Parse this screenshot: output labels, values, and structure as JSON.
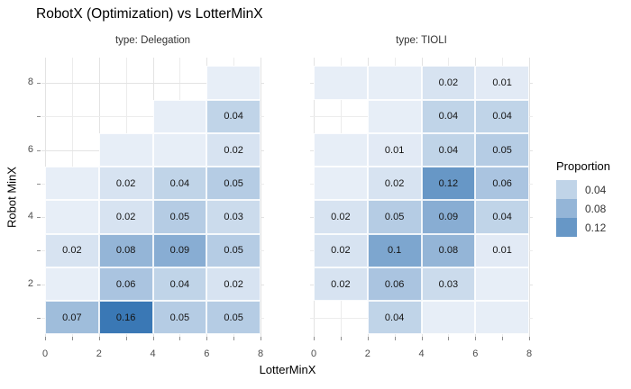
{
  "title": "RobotX (Optimization) vs LotterMinX",
  "x_axis": {
    "label": "LotterMinX",
    "tick_positions": [
      0,
      1,
      2,
      3,
      4,
      5,
      6,
      7,
      8
    ],
    "labeled_ticks": [
      0,
      2,
      4,
      6,
      8
    ],
    "tick_labels": [
      "0",
      "2",
      "4",
      "6",
      "8"
    ]
  },
  "y_axis": {
    "label": "Robot MinX",
    "tick_positions": [
      1,
      2,
      3,
      4,
      5,
      6,
      7,
      8
    ],
    "labeled_ticks": [
      2,
      4,
      6,
      8
    ],
    "tick_labels": [
      "2",
      "4",
      "6",
      "8"
    ]
  },
  "legend": {
    "title": "Proportion",
    "entries": [
      {
        "label": "0.04",
        "value": 0.04
      },
      {
        "label": "0.08",
        "value": 0.08
      },
      {
        "label": "0.12",
        "value": 0.12
      }
    ]
  },
  "scale": {
    "low_color": "#edf2f9",
    "high_color": "#3a78b5",
    "domain": [
      0,
      0.16
    ],
    "unlabeled_cell_value": 0.005
  },
  "chart_data": {
    "type": "heatmap",
    "title": "RobotX (Optimization) vs LotterMinX",
    "xlabel": "LotterMinX",
    "ylabel": "Robot MinX",
    "legend_title": "Proportion",
    "legend_ticks": [
      0.04,
      0.08,
      0.12
    ],
    "x_bins": [
      [
        0,
        2
      ],
      [
        2,
        4
      ],
      [
        4,
        6
      ],
      [
        6,
        8
      ]
    ],
    "y_values": [
      1,
      2,
      3,
      4,
      5,
      6,
      7,
      8
    ],
    "xlim": [
      0,
      8
    ],
    "ylim": [
      0.5,
      8.5
    ],
    "grid": true,
    "facets": [
      {
        "name": "type: Delegation",
        "cells": [
          {
            "x": [
              0,
              2
            ],
            "y": 1,
            "v": 0.07,
            "label": "0.07"
          },
          {
            "x": [
              2,
              4
            ],
            "y": 1,
            "v": 0.16,
            "label": "0.16"
          },
          {
            "x": [
              4,
              6
            ],
            "y": 1,
            "v": 0.05,
            "label": "0.05"
          },
          {
            "x": [
              6,
              8
            ],
            "y": 1,
            "v": 0.05,
            "label": "0.05"
          },
          {
            "x": [
              0,
              2
            ],
            "y": 2,
            "v": null,
            "label": ""
          },
          {
            "x": [
              2,
              4
            ],
            "y": 2,
            "v": 0.06,
            "label": "0.06"
          },
          {
            "x": [
              4,
              6
            ],
            "y": 2,
            "v": 0.04,
            "label": "0.04"
          },
          {
            "x": [
              6,
              8
            ],
            "y": 2,
            "v": 0.02,
            "label": "0.02"
          },
          {
            "x": [
              0,
              2
            ],
            "y": 3,
            "v": 0.02,
            "label": "0.02"
          },
          {
            "x": [
              2,
              4
            ],
            "y": 3,
            "v": 0.08,
            "label": "0.08"
          },
          {
            "x": [
              4,
              6
            ],
            "y": 3,
            "v": 0.09,
            "label": "0.09"
          },
          {
            "x": [
              6,
              8
            ],
            "y": 3,
            "v": 0.05,
            "label": "0.05"
          },
          {
            "x": [
              0,
              2
            ],
            "y": 4,
            "v": null,
            "label": ""
          },
          {
            "x": [
              2,
              4
            ],
            "y": 4,
            "v": 0.02,
            "label": "0.02"
          },
          {
            "x": [
              4,
              6
            ],
            "y": 4,
            "v": 0.05,
            "label": "0.05"
          },
          {
            "x": [
              6,
              8
            ],
            "y": 4,
            "v": 0.03,
            "label": "0.03"
          },
          {
            "x": [
              0,
              2
            ],
            "y": 5,
            "v": null,
            "label": ""
          },
          {
            "x": [
              2,
              4
            ],
            "y": 5,
            "v": 0.02,
            "label": "0.02"
          },
          {
            "x": [
              4,
              6
            ],
            "y": 5,
            "v": 0.04,
            "label": "0.04"
          },
          {
            "x": [
              6,
              8
            ],
            "y": 5,
            "v": 0.05,
            "label": "0.05"
          },
          {
            "x": [
              2,
              4
            ],
            "y": 6,
            "v": null,
            "label": ""
          },
          {
            "x": [
              4,
              6
            ],
            "y": 6,
            "v": null,
            "label": ""
          },
          {
            "x": [
              6,
              8
            ],
            "y": 6,
            "v": 0.02,
            "label": "0.02"
          },
          {
            "x": [
              4,
              6
            ],
            "y": 7,
            "v": null,
            "label": ""
          },
          {
            "x": [
              6,
              8
            ],
            "y": 7,
            "v": 0.04,
            "label": "0.04"
          },
          {
            "x": [
              6,
              8
            ],
            "y": 8,
            "v": null,
            "label": ""
          }
        ]
      },
      {
        "name": "type: TIOLI",
        "cells": [
          {
            "x": [
              2,
              4
            ],
            "y": 1,
            "v": 0.04,
            "label": "0.04"
          },
          {
            "x": [
              4,
              6
            ],
            "y": 1,
            "v": null,
            "label": ""
          },
          {
            "x": [
              6,
              8
            ],
            "y": 1,
            "v": null,
            "label": ""
          },
          {
            "x": [
              0,
              2
            ],
            "y": 2,
            "v": 0.02,
            "label": "0.02"
          },
          {
            "x": [
              2,
              4
            ],
            "y": 2,
            "v": 0.06,
            "label": "0.06"
          },
          {
            "x": [
              4,
              6
            ],
            "y": 2,
            "v": 0.03,
            "label": "0.03"
          },
          {
            "x": [
              6,
              8
            ],
            "y": 2,
            "v": null,
            "label": ""
          },
          {
            "x": [
              0,
              2
            ],
            "y": 3,
            "v": 0.02,
            "label": "0.02"
          },
          {
            "x": [
              2,
              4
            ],
            "y": 3,
            "v": 0.1,
            "label": "0.1"
          },
          {
            "x": [
              4,
              6
            ],
            "y": 3,
            "v": 0.08,
            "label": "0.08"
          },
          {
            "x": [
              6,
              8
            ],
            "y": 3,
            "v": 0.01,
            "label": "0.01"
          },
          {
            "x": [
              0,
              2
            ],
            "y": 4,
            "v": 0.02,
            "label": "0.02"
          },
          {
            "x": [
              2,
              4
            ],
            "y": 4,
            "v": 0.05,
            "label": "0.05"
          },
          {
            "x": [
              4,
              6
            ],
            "y": 4,
            "v": 0.09,
            "label": "0.09"
          },
          {
            "x": [
              6,
              8
            ],
            "y": 4,
            "v": 0.04,
            "label": "0.04"
          },
          {
            "x": [
              0,
              2
            ],
            "y": 5,
            "v": null,
            "label": ""
          },
          {
            "x": [
              2,
              4
            ],
            "y": 5,
            "v": 0.02,
            "label": "0.02"
          },
          {
            "x": [
              4,
              6
            ],
            "y": 5,
            "v": 0.12,
            "label": "0.12"
          },
          {
            "x": [
              6,
              8
            ],
            "y": 5,
            "v": 0.06,
            "label": "0.06"
          },
          {
            "x": [
              0,
              2
            ],
            "y": 6,
            "v": null,
            "label": ""
          },
          {
            "x": [
              2,
              4
            ],
            "y": 6,
            "v": 0.01,
            "label": "0.01"
          },
          {
            "x": [
              4,
              6
            ],
            "y": 6,
            "v": 0.04,
            "label": "0.04"
          },
          {
            "x": [
              6,
              8
            ],
            "y": 6,
            "v": 0.05,
            "label": "0.05"
          },
          {
            "x": [
              2,
              4
            ],
            "y": 7,
            "v": null,
            "label": ""
          },
          {
            "x": [
              4,
              6
            ],
            "y": 7,
            "v": 0.04,
            "label": "0.04"
          },
          {
            "x": [
              6,
              8
            ],
            "y": 7,
            "v": 0.04,
            "label": "0.04"
          },
          {
            "x": [
              0,
              2
            ],
            "y": 8,
            "v": null,
            "label": ""
          },
          {
            "x": [
              2,
              4
            ],
            "y": 8,
            "v": null,
            "label": ""
          },
          {
            "x": [
              4,
              6
            ],
            "y": 8,
            "v": 0.02,
            "label": "0.02"
          },
          {
            "x": [
              6,
              8
            ],
            "y": 8,
            "v": 0.01,
            "label": "0.01"
          }
        ]
      }
    ]
  }
}
